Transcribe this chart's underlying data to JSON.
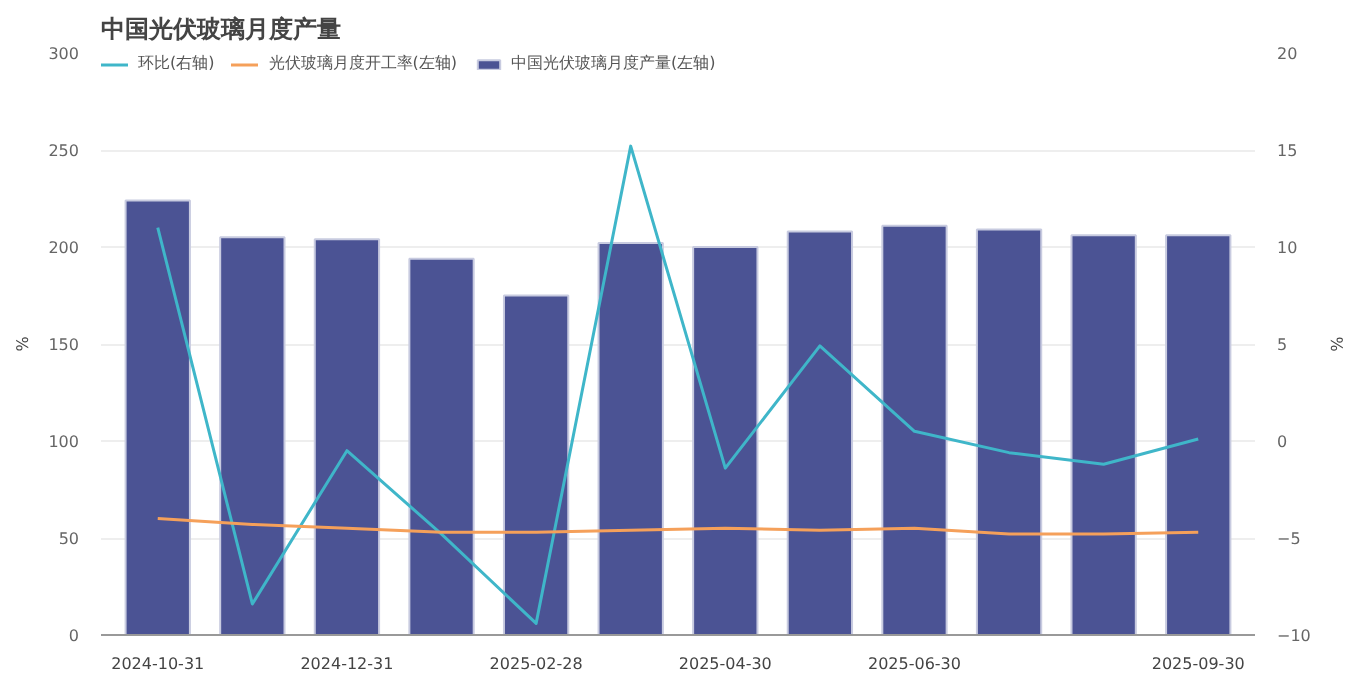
{
  "chart_data": {
    "type": "bar",
    "title": "中国光伏玻璃月度产量",
    "categories": [
      "2024-10-31",
      null,
      "2024-12-31",
      null,
      "2025-02-28",
      null,
      "2025-04-30",
      null,
      "2025-06-30",
      null,
      null,
      "2025-09-30"
    ],
    "series": [
      {
        "name": "环比(右轴)",
        "type": "line",
        "axis": "y2",
        "color": "#3fb6c9",
        "values": [
          11,
          -8.4,
          -0.5,
          -4.8,
          -9.4,
          15.2,
          -1.4,
          4.9,
          0.5,
          -0.6,
          -1.2,
          0.1
        ]
      },
      {
        "name": "光伏玻璃月度开工率(左轴)",
        "type": "line",
        "color": "#f5a05a",
        "values": [
          60,
          57,
          55,
          53,
          53,
          54,
          55,
          54,
          55,
          52,
          52,
          53
        ]
      },
      {
        "name": "中国光伏玻璃月度产量(左轴)",
        "color": "#4b5394",
        "values": [
          224,
          205,
          204,
          194,
          175,
          202,
          200,
          208,
          211,
          209,
          206,
          206
        ]
      }
    ],
    "ylabel": "%",
    "y2label": "%",
    "ylim": [
      0,
      300
    ],
    "yticks": [
      0,
      50,
      100,
      150,
      200,
      250,
      300
    ],
    "y2lim": [
      -10,
      20
    ],
    "y2ticks": [
      -10,
      -5,
      0,
      5,
      10,
      15,
      20
    ],
    "grid": "y",
    "legend": "top left",
    "marker": "none"
  }
}
